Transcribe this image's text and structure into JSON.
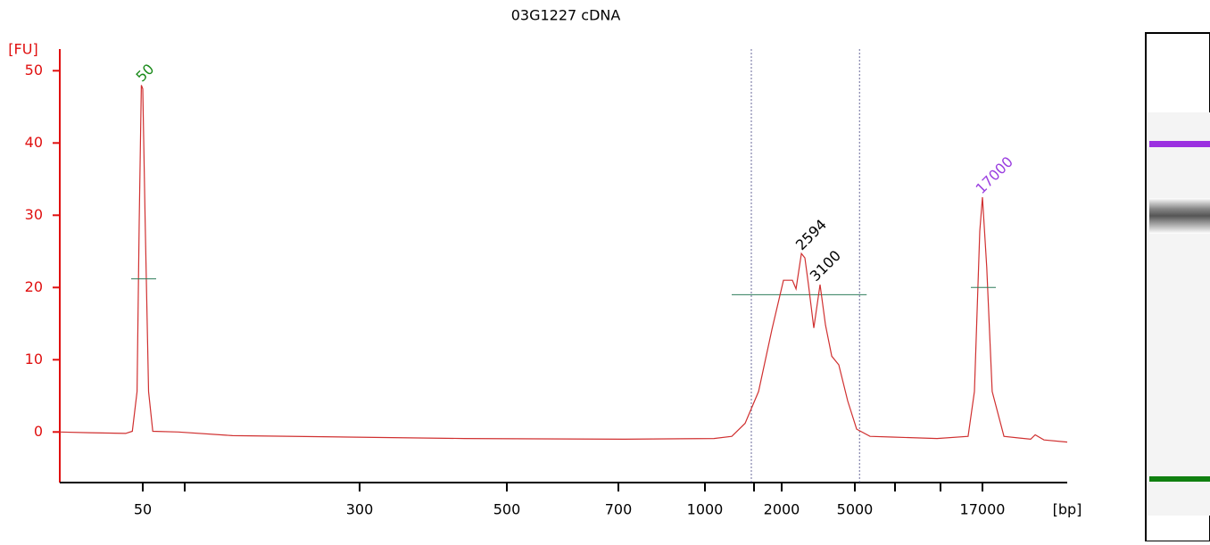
{
  "chart_data": {
    "type": "line",
    "title": "03G1227 cDNA",
    "ylabel": "[FU]",
    "xlabel": "[bp]",
    "xlim": [
      15,
      30000
    ],
    "ylim": [
      -7,
      53
    ],
    "yticks": [
      0,
      10,
      20,
      30,
      40,
      50
    ],
    "xticks": [
      50,
      {
        "value": 100,
        "label": null
      },
      300,
      500,
      700,
      1000,
      {
        "value": 1500,
        "label": null
      },
      2000,
      5000,
      {
        "value": 7000,
        "label": null
      },
      {
        "value": 10000,
        "label": null
      },
      17000
    ],
    "series": [
      {
        "name": "03G1227 cDNA",
        "color": "#d03030",
        "x": [
          15,
          23,
          39,
          43,
          46,
          47.5,
          49,
          50,
          52,
          55,
          59,
          90,
          135,
          279,
          431,
          718,
          1077,
          1248,
          1393,
          1572,
          1807,
          2046,
          2288,
          2393,
          2560,
          2675,
          2797,
          2991,
          3234,
          3462,
          3743,
          4090,
          4570,
          5074,
          5676,
          6848,
          9728,
          14180,
          15360,
          16430,
          17000,
          17500,
          18150,
          19630,
          23480,
          24200,
          25670,
          30000
        ],
        "values": [
          0,
          -0.1,
          -0.2,
          0.1,
          5.6,
          29,
          48,
          47.5,
          29,
          5.6,
          0.1,
          0,
          -0.5,
          -0.7,
          -0.9,
          -1.0,
          -0.9,
          -0.6,
          1.2,
          5.6,
          14.2,
          21,
          21,
          19.8,
          24.7,
          24.1,
          20.4,
          14.4,
          20.4,
          14.8,
          10.5,
          9.3,
          4.3,
          0.4,
          -0.6,
          -0.7,
          -0.9,
          -0.6,
          5.6,
          27.8,
          32.5,
          22.8,
          5.6,
          -0.6,
          -1.0,
          -0.4,
          -1.1,
          -1.4
        ]
      }
    ],
    "peaks": [
      {
        "x": 50,
        "y": 48,
        "color": "#1a8a1a",
        "level": 21.2
      },
      {
        "x": 2594,
        "y": 24.7,
        "color": "#000000"
      },
      {
        "x": 3100,
        "y": 20.4,
        "color": "#000000"
      },
      {
        "x": 17000,
        "y": 32.5,
        "color": "#9b40e0",
        "level": 20
      }
    ],
    "region": {
      "xlim": [
        1467,
        5200
      ],
      "y": 19
    }
  }
}
